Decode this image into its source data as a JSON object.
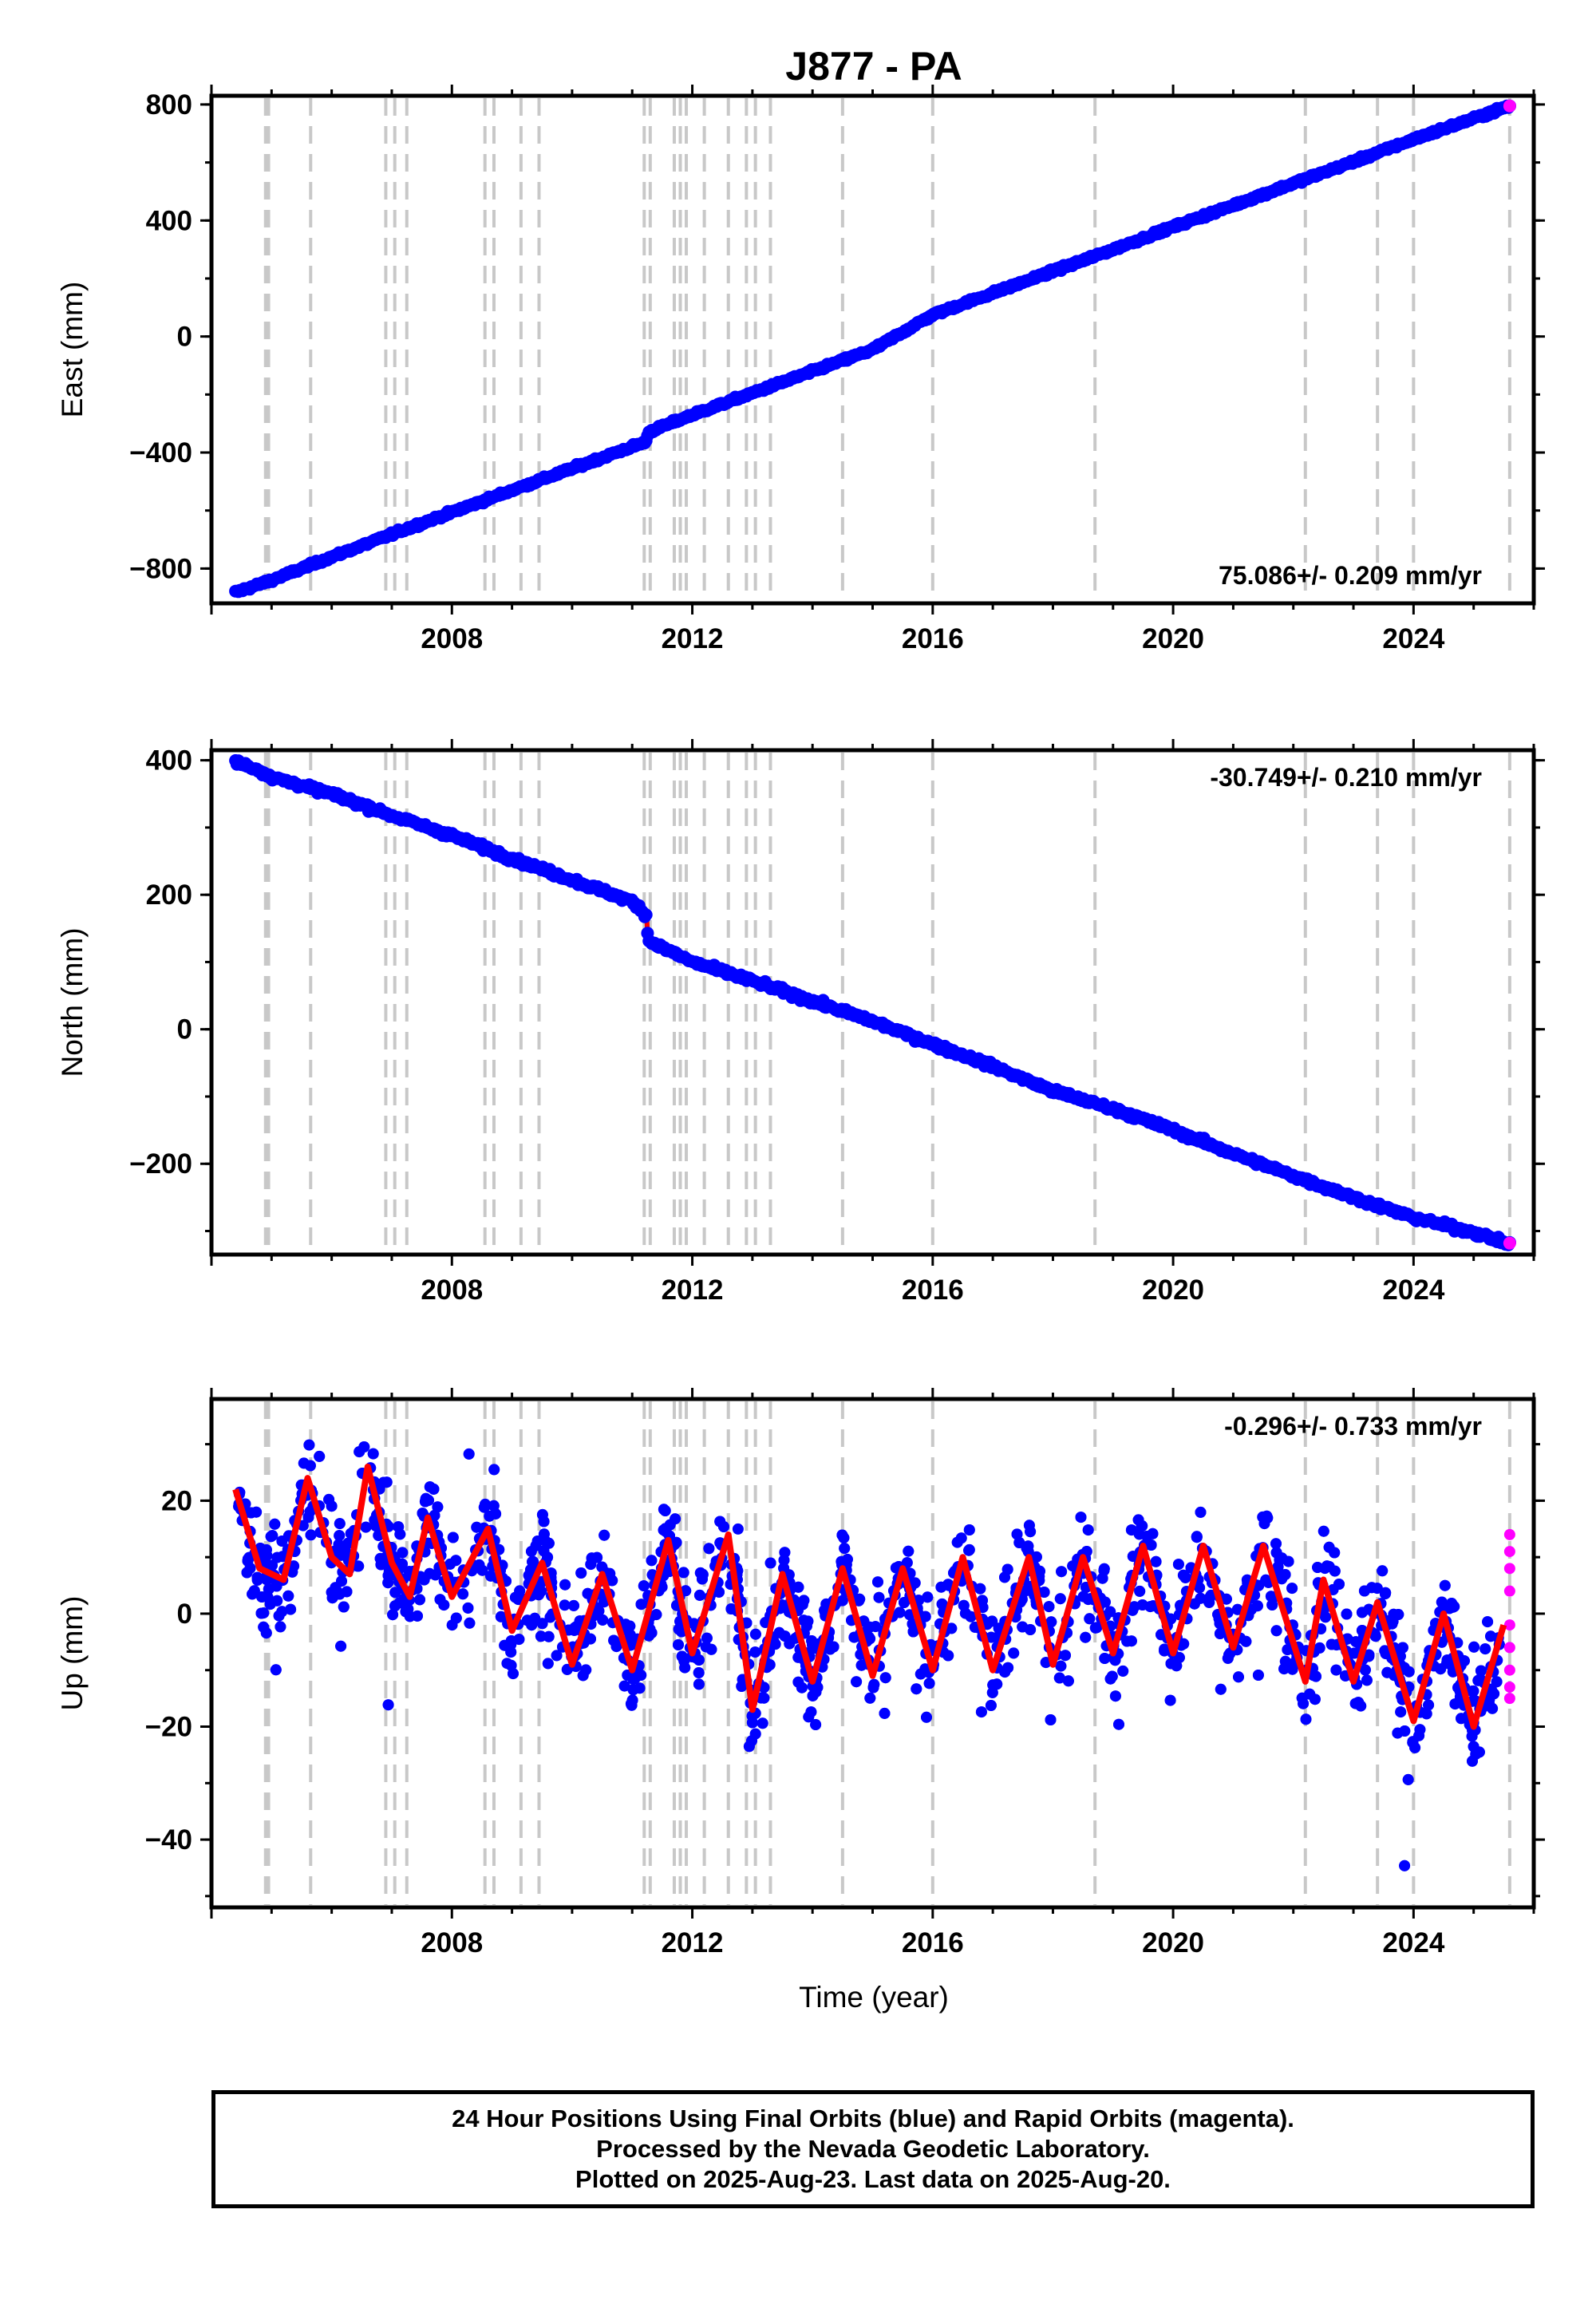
{
  "title": "J877 - PA",
  "xlabel": "Time (year)",
  "footer": {
    "line1": "24 Hour Positions Using Final Orbits (blue) and Rapid Orbits (magenta).",
    "line2": "Processed by the Nevada Geodetic Laboratory.",
    "line3": "Plotted on 2025-Aug-23. Last data on 2025-Aug-20."
  },
  "colors": {
    "final": "#0000ff",
    "rapid": "#ff00ff",
    "model": "#ff0000",
    "steps": "#c8c8c8"
  },
  "chart_data": [
    {
      "type": "scatter",
      "panel": "east",
      "ylabel": "East (mm)",
      "rate_label": "75.086+/- 0.209 mm/yr",
      "xlim": [
        2004.0,
        2026.0
      ],
      "ylim": [
        -920,
        830
      ],
      "xticks": [
        2008,
        2012,
        2016,
        2020,
        2024
      ],
      "yticks": [
        -800,
        -400,
        0,
        400,
        800
      ],
      "series": [
        {
          "x": [
            2004.4,
            2005.0,
            2006.0,
            2007.0,
            2008.0,
            2009.0,
            2010.0,
            2011.0,
            2011.24,
            2011.26,
            2012.0,
            2013.0,
            2014.0,
            2015.0,
            2016.0,
            2017.0,
            2018.0,
            2019.0,
            2020.0,
            2021.0,
            2022.0,
            2023.0,
            2024.0,
            2025.0,
            2025.6
          ],
          "y": [
            -882,
            -840,
            -760,
            -682,
            -606,
            -530,
            -455,
            -380,
            -362,
            -330,
            -270,
            -195,
            -120,
            -45,
            75,
            150,
            225,
            300,
            378,
            452,
            528,
            603,
            680,
            752,
            795
          ]
        }
      ],
      "rapid_last": {
        "x": 2025.6,
        "y": 795
      }
    },
    {
      "type": "scatter",
      "panel": "north",
      "ylabel": "North (mm)",
      "rate_label": "-30.749+/- 0.210 mm/yr",
      "xlim": [
        2004.0,
        2026.0
      ],
      "ylim": [
        -335,
        415
      ],
      "xticks": [
        2008,
        2012,
        2016,
        2020,
        2024
      ],
      "yticks": [
        -200,
        0,
        200,
        400
      ],
      "series": [
        {
          "x": [
            2004.4,
            2004.8,
            2005.0,
            2006.0,
            2007.0,
            2008.0,
            2009.0,
            2010.0,
            2011.0,
            2011.24,
            2011.26,
            2012.0,
            2013.0,
            2014.0,
            2015.0,
            2016.0,
            2017.0,
            2018.0,
            2019.0,
            2020.0,
            2021.0,
            2022.0,
            2023.0,
            2024.0,
            2025.0,
            2025.6
          ],
          "y": [
            398,
            385,
            375,
            350,
            318,
            288,
            254,
            222,
            190,
            170,
            132,
            100,
            72,
            42,
            12,
            -22,
            -55,
            -92,
            -118,
            -150,
            -185,
            -218,
            -250,
            -280,
            -302,
            -320
          ]
        }
      ],
      "rapid_last": {
        "x": 2025.6,
        "y": -318
      }
    },
    {
      "type": "scatter",
      "panel": "up",
      "ylabel": "Up (mm)",
      "rate_label": "-0.296+/- 0.733 mm/yr",
      "xlim": [
        2004.0,
        2026.0
      ],
      "ylim": [
        -52,
        38
      ],
      "xticks": [
        2008,
        2012,
        2016,
        2020,
        2024
      ],
      "yticks": [
        -40,
        -20,
        0,
        20
      ],
      "model_smoothed": {
        "x": [
          2004.4,
          2004.8,
          2005.2,
          2005.6,
          2006.0,
          2006.3,
          2006.6,
          2007.0,
          2007.3,
          2007.6,
          2008.0,
          2008.6,
          2009.0,
          2009.5,
          2010.0,
          2010.5,
          2011.0,
          2011.6,
          2012.0,
          2012.6,
          2013.0,
          2013.5,
          2014.0,
          2014.5,
          2015.0,
          2015.5,
          2016.0,
          2016.5,
          2017.0,
          2017.6,
          2018.0,
          2018.5,
          2019.0,
          2019.5,
          2020.0,
          2020.5,
          2021.0,
          2021.5,
          2022.2,
          2022.5,
          2023.0,
          2023.4,
          2024.0,
          2024.5,
          2025.0,
          2025.5
        ],
        "y": [
          22,
          8,
          6,
          24,
          10,
          7,
          26,
          9,
          3,
          17,
          3,
          15,
          -3,
          9,
          -9,
          7,
          -10,
          13,
          -7,
          14,
          -17,
          7,
          -12,
          8,
          -11,
          8,
          -10,
          10,
          -10,
          10,
          -9,
          10,
          -7,
          12,
          -7,
          12,
          -6,
          12,
          -12,
          6,
          -12,
          2,
          -19,
          0,
          -20,
          -2
        ]
      },
      "rapid_points": {
        "x": [
          2025.6,
          2025.6,
          2025.6,
          2025.6,
          2025.6,
          2025.6,
          2025.6,
          2025.6,
          2025.6
        ],
        "y": [
          14,
          11,
          8,
          4,
          -2,
          -6,
          -10,
          -13,
          -15
        ]
      }
    }
  ],
  "step_epochs": [
    2004.9,
    2004.95,
    2005.65,
    2006.9,
    2007.05,
    2007.25,
    2008.55,
    2008.7,
    2009.15,
    2009.45,
    2011.2,
    2011.3,
    2011.7,
    2011.8,
    2011.9,
    2012.2,
    2012.6,
    2012.9,
    2013.05,
    2013.3,
    2014.5,
    2016.0,
    2018.7,
    2022.2,
    2023.4,
    2024.0,
    2025.6
  ]
}
